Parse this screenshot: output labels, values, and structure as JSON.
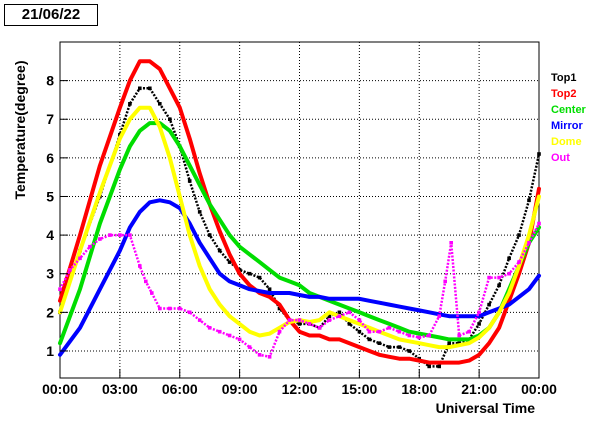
{
  "header": {
    "date_label": "21/06/22"
  },
  "chart_data": {
    "type": "line",
    "title": "",
    "xlabel": "Universal Time",
    "ylabel": "Temperature(degree)",
    "xlim": [
      0,
      24
    ],
    "ylim": [
      0.3,
      9.0
    ],
    "grid": true,
    "legend_position": "right",
    "x_ticks": [
      {
        "value": 0,
        "label": "00:00"
      },
      {
        "value": 3,
        "label": "03:00"
      },
      {
        "value": 6,
        "label": "06:00"
      },
      {
        "value": 9,
        "label": "09:00"
      },
      {
        "value": 12,
        "label": "12:00"
      },
      {
        "value": 15,
        "label": "15:00"
      },
      {
        "value": 18,
        "label": "18:00"
      },
      {
        "value": 21,
        "label": "21:00"
      },
      {
        "value": 24,
        "label": "00:00"
      }
    ],
    "y_ticks": [
      {
        "value": 1,
        "label": "1"
      },
      {
        "value": 2,
        "label": "2"
      },
      {
        "value": 3,
        "label": "3"
      },
      {
        "value": 4,
        "label": "4"
      },
      {
        "value": 5,
        "label": "5"
      },
      {
        "value": 6,
        "label": "6"
      },
      {
        "value": 7,
        "label": "7"
      },
      {
        "value": 8,
        "label": "8"
      }
    ],
    "series": [
      {
        "name": "Top1",
        "color": "#000000",
        "style": "markers",
        "x": [
          0,
          1,
          2,
          3,
          3.5,
          4,
          4.5,
          5,
          5.5,
          6,
          6.5,
          7,
          7.5,
          8,
          8.5,
          9,
          9.5,
          10,
          10.5,
          11,
          11.5,
          12,
          12.5,
          13,
          13.5,
          14,
          14.5,
          15,
          15.5,
          16,
          16.5,
          17,
          17.5,
          18,
          18.5,
          19,
          19.5,
          20,
          20.5,
          21,
          21.5,
          22,
          22.5,
          23,
          23.5,
          24
        ],
        "values": [
          2.0,
          3.6,
          5.0,
          6.6,
          7.4,
          7.8,
          7.8,
          7.4,
          7.0,
          6.3,
          5.4,
          4.6,
          4.0,
          3.6,
          3.3,
          3.1,
          3.0,
          2.9,
          2.6,
          2.1,
          1.8,
          1.7,
          1.7,
          1.6,
          1.9,
          2.0,
          1.7,
          1.5,
          1.3,
          1.2,
          1.1,
          1.1,
          1.0,
          0.8,
          0.6,
          0.6,
          1.2,
          1.2,
          1.3,
          1.7,
          2.2,
          2.7,
          3.4,
          4.0,
          4.9,
          6.1
        ]
      },
      {
        "name": "Top2",
        "color": "#ff0000",
        "style": "line",
        "x": [
          0,
          1,
          2,
          3,
          3.5,
          4,
          4.5,
          5,
          5.5,
          6,
          6.5,
          7,
          7.5,
          8,
          8.5,
          9,
          9.5,
          10,
          10.5,
          11,
          11.5,
          12,
          12.5,
          13,
          13.5,
          14,
          14.5,
          15,
          15.5,
          16,
          16.5,
          17,
          17.5,
          18,
          18.5,
          19,
          19.5,
          20,
          20.5,
          21,
          21.5,
          22,
          22.5,
          23,
          23.5,
          24
        ],
        "values": [
          2.3,
          4.0,
          5.8,
          7.3,
          8.0,
          8.5,
          8.5,
          8.3,
          7.8,
          7.3,
          6.5,
          5.6,
          4.8,
          4.1,
          3.5,
          3.0,
          2.7,
          2.5,
          2.4,
          2.2,
          1.8,
          1.5,
          1.4,
          1.4,
          1.3,
          1.3,
          1.2,
          1.1,
          1.0,
          0.9,
          0.85,
          0.8,
          0.8,
          0.75,
          0.7,
          0.7,
          0.7,
          0.7,
          0.75,
          0.9,
          1.2,
          1.6,
          2.3,
          3.0,
          3.8,
          5.2
        ]
      },
      {
        "name": "Center",
        "color": "#00dd00",
        "style": "line",
        "x": [
          0,
          1,
          2,
          3,
          3.5,
          4,
          4.5,
          5,
          5.5,
          6,
          6.5,
          7,
          7.5,
          8,
          8.5,
          9,
          9.5,
          10,
          10.5,
          11,
          11.5,
          12,
          12.5,
          13,
          13.5,
          14,
          14.5,
          15,
          15.5,
          16,
          16.5,
          17,
          17.5,
          18,
          18.5,
          19,
          19.5,
          20,
          20.5,
          21,
          21.5,
          22,
          22.5,
          23,
          23.5,
          24
        ],
        "values": [
          1.2,
          2.6,
          4.3,
          5.7,
          6.3,
          6.7,
          6.9,
          6.9,
          6.7,
          6.3,
          5.8,
          5.3,
          4.8,
          4.4,
          4.0,
          3.7,
          3.5,
          3.3,
          3.1,
          2.9,
          2.8,
          2.7,
          2.5,
          2.4,
          2.3,
          2.2,
          2.1,
          2.0,
          1.9,
          1.8,
          1.7,
          1.6,
          1.5,
          1.45,
          1.4,
          1.35,
          1.3,
          1.3,
          1.3,
          1.4,
          1.6,
          2.0,
          2.6,
          3.2,
          3.8,
          4.2
        ]
      },
      {
        "name": "Mirror",
        "color": "#0000ff",
        "style": "line",
        "x": [
          0,
          1,
          2,
          3,
          3.5,
          4,
          4.5,
          5,
          5.5,
          6,
          6.5,
          7,
          7.5,
          8,
          8.5,
          9,
          9.5,
          10,
          10.5,
          11,
          11.5,
          12,
          12.5,
          13,
          13.5,
          14,
          14.5,
          15,
          15.5,
          16,
          16.5,
          17,
          17.5,
          18,
          18.5,
          19,
          19.5,
          20,
          20.5,
          21,
          21.5,
          22,
          22.5,
          23,
          23.5,
          24
        ],
        "values": [
          0.9,
          1.6,
          2.6,
          3.6,
          4.2,
          4.6,
          4.85,
          4.9,
          4.85,
          4.7,
          4.3,
          3.8,
          3.4,
          3.0,
          2.8,
          2.7,
          2.6,
          2.55,
          2.5,
          2.5,
          2.5,
          2.45,
          2.4,
          2.4,
          2.35,
          2.35,
          2.35,
          2.35,
          2.3,
          2.25,
          2.2,
          2.15,
          2.1,
          2.05,
          2.0,
          1.95,
          1.9,
          1.9,
          1.9,
          1.9,
          2.0,
          2.1,
          2.2,
          2.4,
          2.6,
          2.95
        ]
      },
      {
        "name": "Dome",
        "color": "#ffff00",
        "style": "line",
        "x": [
          0,
          1,
          2,
          3,
          3.5,
          4,
          4.5,
          5,
          5.5,
          6,
          6.5,
          7,
          7.5,
          8,
          8.5,
          9,
          9.5,
          10,
          10.5,
          11,
          11.5,
          12,
          12.5,
          13,
          13.5,
          14,
          14.5,
          15,
          15.5,
          16,
          16.5,
          17,
          17.5,
          18,
          18.5,
          19,
          19.5,
          20,
          20.5,
          21,
          21.5,
          22,
          22.5,
          23,
          23.5,
          24
        ],
        "values": [
          2.0,
          3.6,
          5.1,
          6.5,
          7.0,
          7.3,
          7.3,
          6.8,
          6.0,
          5.0,
          4.0,
          3.2,
          2.6,
          2.2,
          1.9,
          1.7,
          1.5,
          1.4,
          1.45,
          1.6,
          1.75,
          1.8,
          1.75,
          1.8,
          2.0,
          1.9,
          1.8,
          1.7,
          1.6,
          1.5,
          1.4,
          1.3,
          1.25,
          1.2,
          1.15,
          1.1,
          1.1,
          1.15,
          1.2,
          1.35,
          1.6,
          2.0,
          2.5,
          3.2,
          4.0,
          5.0
        ]
      },
      {
        "name": "Out",
        "color": "#ff00ff",
        "style": "markers",
        "x": [
          0,
          0.5,
          1,
          1.5,
          2,
          2.5,
          3,
          3.5,
          4,
          4.3,
          4.6,
          5,
          5.5,
          6,
          6.5,
          7,
          7.5,
          8,
          8.5,
          9,
          9.5,
          10,
          10.5,
          11,
          11.5,
          12,
          12.5,
          13,
          13.5,
          14,
          14.5,
          15,
          15.5,
          16,
          16.5,
          17,
          17.5,
          18,
          18.5,
          19,
          19.3,
          19.6,
          20,
          20.5,
          21,
          21.5,
          22,
          22.5,
          23,
          23.5,
          24
        ],
        "values": [
          2.6,
          3.1,
          3.4,
          3.7,
          3.9,
          4.0,
          4.0,
          4.0,
          3.2,
          2.8,
          2.5,
          2.1,
          2.1,
          2.1,
          2.0,
          1.8,
          1.6,
          1.5,
          1.4,
          1.3,
          1.1,
          0.9,
          0.85,
          1.5,
          1.8,
          1.8,
          1.7,
          1.6,
          1.8,
          1.9,
          2.0,
          1.8,
          1.5,
          1.5,
          1.6,
          1.5,
          1.4,
          1.35,
          1.4,
          1.9,
          2.8,
          3.8,
          1.4,
          1.5,
          2.0,
          2.9,
          2.9,
          3.0,
          3.3,
          3.8,
          4.3
        ]
      }
    ]
  }
}
